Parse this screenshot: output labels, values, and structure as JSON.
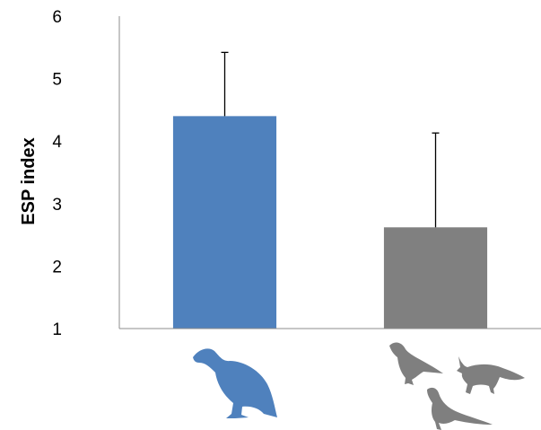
{
  "chart_data": {
    "type": "bar",
    "categories": [
      "vulture-icon",
      "scavengers-group-icon"
    ],
    "values": [
      4.4,
      2.62
    ],
    "error_upper": [
      5.42,
      4.13
    ],
    "ylabel": "ESP index",
    "ylim": [
      1,
      6
    ],
    "yticks": [
      "1",
      "2",
      "3",
      "4",
      "5",
      "6"
    ],
    "grid": false,
    "legend": "none"
  },
  "colors": {
    "bar_1": "#4f81bd",
    "bar_2": "#808080",
    "icon_1": "#4f81bd",
    "icon_2": "#7f7f7f",
    "axis": "#8c8c8c"
  }
}
